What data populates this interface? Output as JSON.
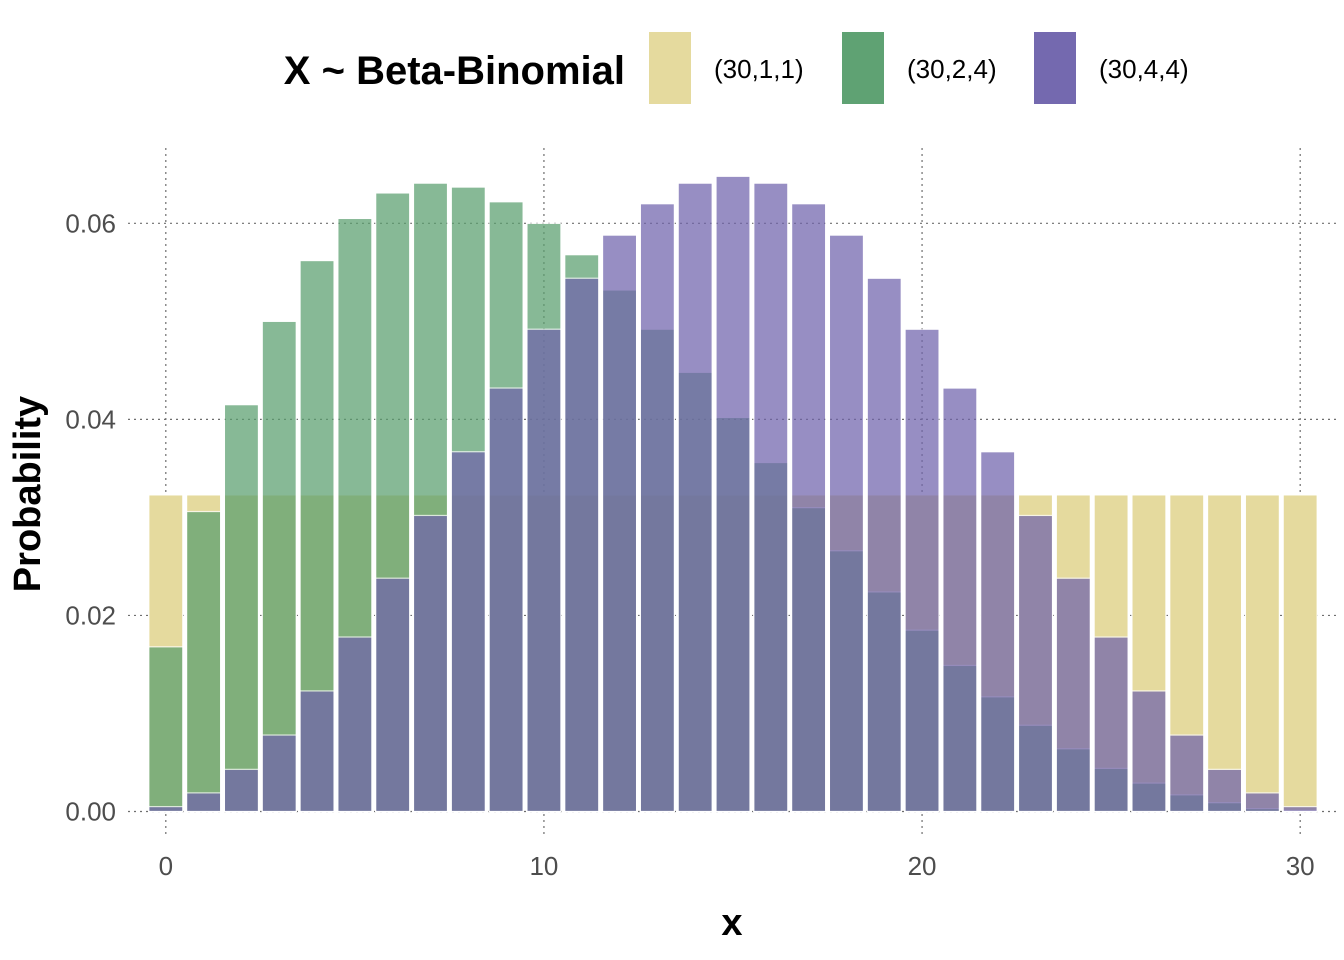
{
  "chart_data": {
    "type": "bar",
    "title": "",
    "legend_title": "X ~ Beta-Binomial",
    "legend_position": "top",
    "xlabel": "x",
    "ylabel": "Probability",
    "xlim": [
      -1,
      31
    ],
    "ylim": [
      -0.0025,
      0.0685
    ],
    "x_ticks": [
      0,
      10,
      20,
      30
    ],
    "x_tick_labels": [
      "0",
      "10",
      "20",
      "30"
    ],
    "y_ticks": [
      0.0,
      0.02,
      0.04,
      0.06
    ],
    "y_tick_labels": [
      "0.00",
      "0.02",
      "0.04",
      "0.06"
    ],
    "grid": true,
    "x": [
      0,
      1,
      2,
      3,
      4,
      5,
      6,
      7,
      8,
      9,
      10,
      11,
      12,
      13,
      14,
      15,
      16,
      17,
      18,
      19,
      20,
      21,
      22,
      23,
      24,
      25,
      26,
      27,
      28,
      29,
      30
    ],
    "series": [
      {
        "name": "(30,1,1)",
        "color": "#E5DA9E",
        "values": [
          0.0323,
          0.0323,
          0.0323,
          0.0323,
          0.0323,
          0.0323,
          0.0323,
          0.0323,
          0.0323,
          0.0323,
          0.0323,
          0.0323,
          0.0323,
          0.0323,
          0.0323,
          0.0323,
          0.0323,
          0.0323,
          0.0323,
          0.0323,
          0.0323,
          0.0323,
          0.0323,
          0.0323,
          0.0323,
          0.0323,
          0.0323,
          0.0323,
          0.0323,
          0.0323,
          0.0323
        ]
      },
      {
        "name": "(30,2,4)",
        "color": "#5A9F6E",
        "values": [
          0.0168,
          0.0306,
          0.0415,
          0.05,
          0.0562,
          0.0605,
          0.0631,
          0.0641,
          0.0637,
          0.0622,
          0.06,
          0.0568,
          0.0532,
          0.0492,
          0.0448,
          0.0402,
          0.0356,
          0.031,
          0.0266,
          0.0224,
          0.0185,
          0.0149,
          0.0117,
          0.0088,
          0.0064,
          0.0044,
          0.0029,
          0.0017,
          0.0009,
          0.0003,
          0.0001
        ]
      },
      {
        "name": "(30,4,4)",
        "color": "#7064AC",
        "values": [
          0.0005,
          0.0019,
          0.0043,
          0.0078,
          0.0123,
          0.0178,
          0.0238,
          0.0302,
          0.0367,
          0.0432,
          0.0492,
          0.0544,
          0.0588,
          0.062,
          0.0641,
          0.0648,
          0.0641,
          0.062,
          0.0588,
          0.0544,
          0.0492,
          0.0432,
          0.0367,
          0.0302,
          0.0238,
          0.0178,
          0.0123,
          0.0078,
          0.0043,
          0.0019,
          0.0005
        ]
      }
    ]
  }
}
